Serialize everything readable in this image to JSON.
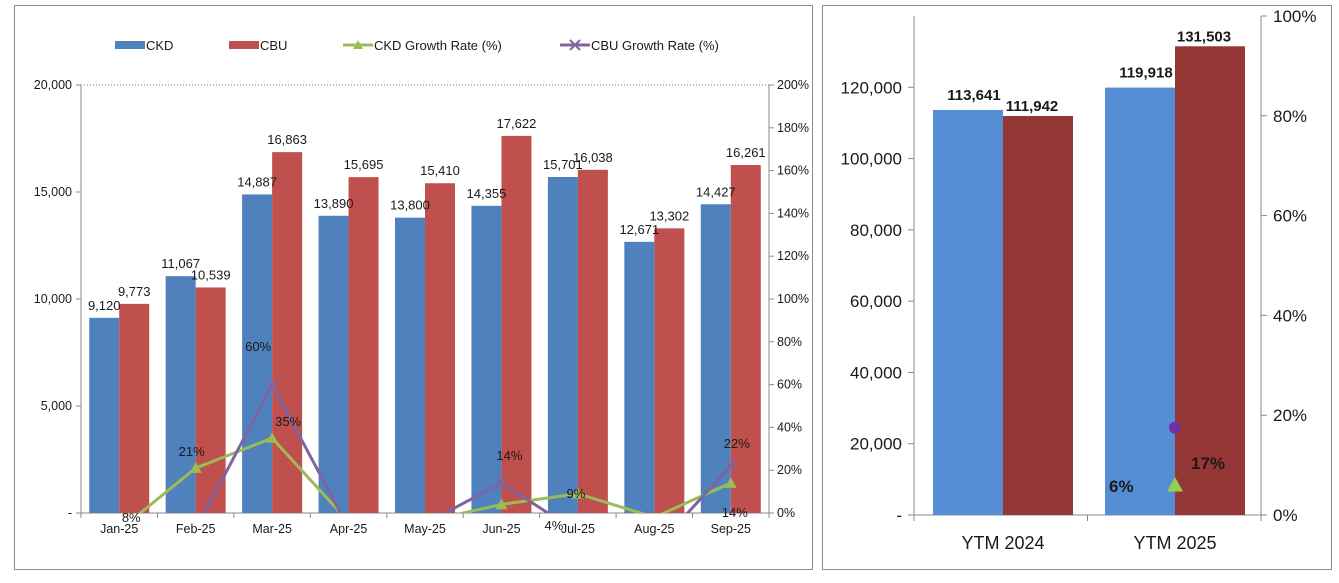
{
  "chart_data": [
    {
      "type": "bar",
      "title": "",
      "categories": [
        "Jan-25",
        "Feb-25",
        "Mar-25",
        "Apr-25",
        "May-25",
        "Jun-25",
        "Jul-25",
        "Aug-25",
        "Sep-25"
      ],
      "series": [
        {
          "name": "CKD",
          "kind": "bar",
          "axis": "left",
          "color": "#4f81bd",
          "values": [
            9120,
            11067,
            14887,
            13890,
            13800,
            14355,
            15701,
            12671,
            14427
          ],
          "labels": [
            "9,120",
            "11,067",
            "14,887",
            "13,890",
            "13,800",
            "14,355",
            "15,701",
            "12,671",
            "14,427"
          ]
        },
        {
          "name": "CBU",
          "kind": "bar",
          "axis": "left",
          "color": "#c0504d",
          "values": [
            9773,
            10539,
            16863,
            15695,
            15410,
            17622,
            16038,
            13302,
            16261
          ],
          "labels": [
            "9,773",
            "10,539",
            "16,863",
            "15,695",
            "15,410",
            "17,622",
            "16,038",
            "13,302",
            "16,261"
          ]
        },
        {
          "name": "CKD Growth Rate (%)",
          "kind": "line",
          "axis": "right",
          "color": "#9bbb59",
          "marker": "triangle",
          "values": [
            -8,
            21,
            35,
            -4,
            -4,
            4,
            9,
            -2,
            14
          ]
        },
        {
          "name": "CBU Growth Rate (%)",
          "kind": "line",
          "axis": "right",
          "color": "#8064a2",
          "marker": "x",
          "values": [
            -8,
            -8,
            60,
            -7,
            -5,
            14,
            -9,
            -17,
            22
          ]
        }
      ],
      "percent_labels": [
        {
          "category": "Jan-25",
          "text": "8%"
        },
        {
          "category": "Feb-25",
          "text": "21%"
        },
        {
          "category": "Mar-25",
          "text": "60%"
        },
        {
          "category": "Mar-25",
          "text": "35%"
        },
        {
          "category": "Jun-25",
          "text": "14%"
        },
        {
          "category": "Jul-25",
          "text": "4%"
        },
        {
          "category": "Jul-25",
          "text": "9%"
        },
        {
          "category": "Sep-25",
          "text": "22%"
        },
        {
          "category": "Sep-25",
          "text": "14%"
        }
      ],
      "y_left": {
        "min": 0,
        "max": 20000,
        "ticks": [
          0,
          5000,
          10000,
          15000,
          20000
        ],
        "tick_labels": [
          "-",
          "5,000",
          "10,000",
          "15,000",
          "20,000"
        ]
      },
      "y_right": {
        "min": 0,
        "max": 200,
        "ticks": [
          0,
          20,
          40,
          60,
          80,
          100,
          120,
          140,
          160,
          180,
          200
        ],
        "tick_labels": [
          "0%",
          "20%",
          "40%",
          "60%",
          "80%",
          "100%",
          "120%",
          "140%",
          "160%",
          "180%",
          "200%"
        ]
      },
      "legend_position": "top",
      "grid": false
    },
    {
      "type": "bar",
      "title": "",
      "categories": [
        "YTM 2024",
        "YTM 2025"
      ],
      "series": [
        {
          "name": "CKD",
          "kind": "bar",
          "axis": "left",
          "color": "#558ed5",
          "values": [
            113641,
            119918
          ],
          "labels": [
            "113,641",
            "119,918"
          ]
        },
        {
          "name": "CBU",
          "kind": "bar",
          "axis": "left",
          "color": "#953735",
          "values": [
            111942,
            131503
          ],
          "labels": [
            "111,942",
            "131,503"
          ]
        }
      ],
      "points": [
        {
          "category": "YTM 2025",
          "series": "CKD Growth Rate (%)",
          "value": 6,
          "label": "6%",
          "color": "#92d050",
          "marker": "triangle"
        },
        {
          "category": "YTM 2025",
          "series": "CBU Growth Rate (%)",
          "value": 17.5,
          "label": "17%",
          "color": "#7030a0",
          "marker": "circle"
        }
      ],
      "y_left": {
        "min": 0,
        "max": 140000,
        "ticks": [
          0,
          20000,
          40000,
          60000,
          80000,
          100000,
          120000
        ],
        "tick_labels": [
          "-",
          "20,000",
          "40,000",
          "60,000",
          "80,000",
          "100,000",
          "120,000"
        ]
      },
      "y_right": {
        "min": 0,
        "max": 100,
        "ticks": [
          0,
          20,
          40,
          60,
          80,
          100
        ],
        "tick_labels": [
          "0%",
          "20%",
          "40%",
          "60%",
          "80%",
          "100%"
        ]
      },
      "grid": false
    }
  ]
}
